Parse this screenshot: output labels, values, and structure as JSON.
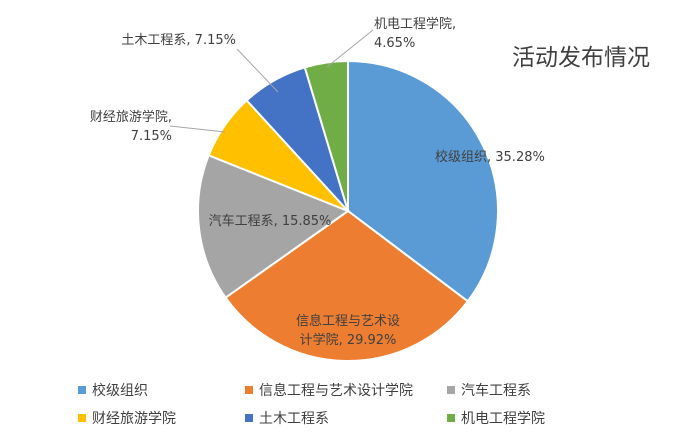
{
  "chart_data": {
    "type": "pie",
    "title": "活动发布情况",
    "slices": [
      {
        "name": "校级组织",
        "value": 35.28,
        "label": "校级组织, 35.28%",
        "label_lines": [
          "校级组织, 35.28%"
        ],
        "color": "#5b9bd5"
      },
      {
        "name": "信息工程与艺术设计学院",
        "value": 29.92,
        "label": "信息工程与艺术设计学院, 29.92%",
        "label_lines": [
          "信息工程与艺术设",
          "计学院, 29.92%"
        ],
        "color": "#ed7d31"
      },
      {
        "name": "汽车工程系",
        "value": 15.85,
        "label": "汽车工程系, 15.85%",
        "label_lines": [
          "汽车工程系, 15.85%"
        ],
        "color": "#a5a5a5"
      },
      {
        "name": "财经旅游学院",
        "value": 7.15,
        "label": "财经旅游学院, 7.15%",
        "label_lines": [
          "财经旅游学院,",
          "7.15%"
        ],
        "color": "#ffc000"
      },
      {
        "name": "土木工程系",
        "value": 7.15,
        "label": "土木工程系, 7.15%",
        "label_lines": [
          "土木工程系, 7.15%"
        ],
        "color": "#4472c4"
      },
      {
        "name": "机电工程学院",
        "value": 4.65,
        "label": "机电工程学院, 4.65%",
        "label_lines": [
          "机电工程学院,",
          "4.65%"
        ],
        "color": "#70ad47"
      }
    ],
    "legend_position": "bottom"
  }
}
